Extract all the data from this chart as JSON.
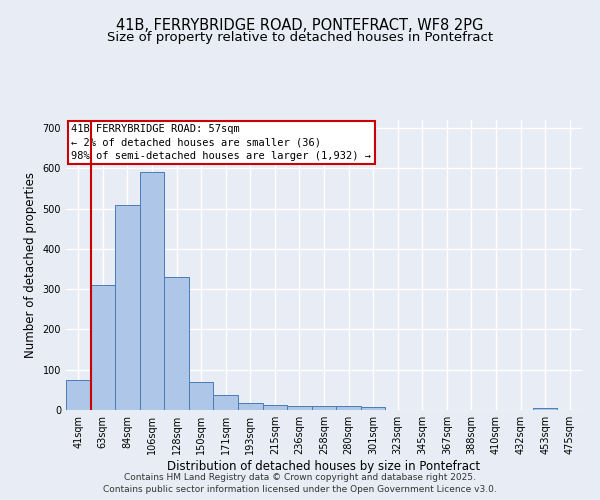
{
  "title": "41B, FERRYBRIDGE ROAD, PONTEFRACT, WF8 2PG",
  "subtitle": "Size of property relative to detached houses in Pontefract",
  "xlabel": "Distribution of detached houses by size in Pontefract",
  "ylabel": "Number of detached properties",
  "bar_labels": [
    "41sqm",
    "63sqm",
    "84sqm",
    "106sqm",
    "128sqm",
    "150sqm",
    "171sqm",
    "193sqm",
    "215sqm",
    "236sqm",
    "258sqm",
    "280sqm",
    "301sqm",
    "323sqm",
    "345sqm",
    "367sqm",
    "388sqm",
    "410sqm",
    "432sqm",
    "453sqm",
    "475sqm"
  ],
  "bar_values": [
    75,
    310,
    510,
    590,
    330,
    70,
    37,
    18,
    13,
    10,
    10,
    10,
    7,
    0,
    0,
    0,
    0,
    0,
    0,
    4,
    0
  ],
  "bar_color": "#aec6e8",
  "bar_edge_color": "#4a7cb5",
  "ylim": [
    0,
    720
  ],
  "yticks": [
    0,
    100,
    200,
    300,
    400,
    500,
    600,
    700
  ],
  "vline_x": 0.5,
  "vline_color": "#cc0000",
  "annotation_text": "41B FERRYBRIDGE ROAD: 57sqm\n← 2% of detached houses are smaller (36)\n98% of semi-detached houses are larger (1,932) →",
  "annotation_box_color": "#ffffff",
  "annotation_box_edge": "#cc0000",
  "footer_line1": "Contains HM Land Registry data © Crown copyright and database right 2025.",
  "footer_line2": "Contains public sector information licensed under the Open Government Licence v3.0.",
  "bg_color": "#e8edf5",
  "plot_bg_color": "#e8edf5",
  "grid_color": "#ffffff",
  "title_fontsize": 10.5,
  "subtitle_fontsize": 9.5,
  "tick_fontsize": 7,
  "ylabel_fontsize": 8.5,
  "xlabel_fontsize": 8.5,
  "annotation_fontsize": 7.5,
  "footer_fontsize": 6.5
}
